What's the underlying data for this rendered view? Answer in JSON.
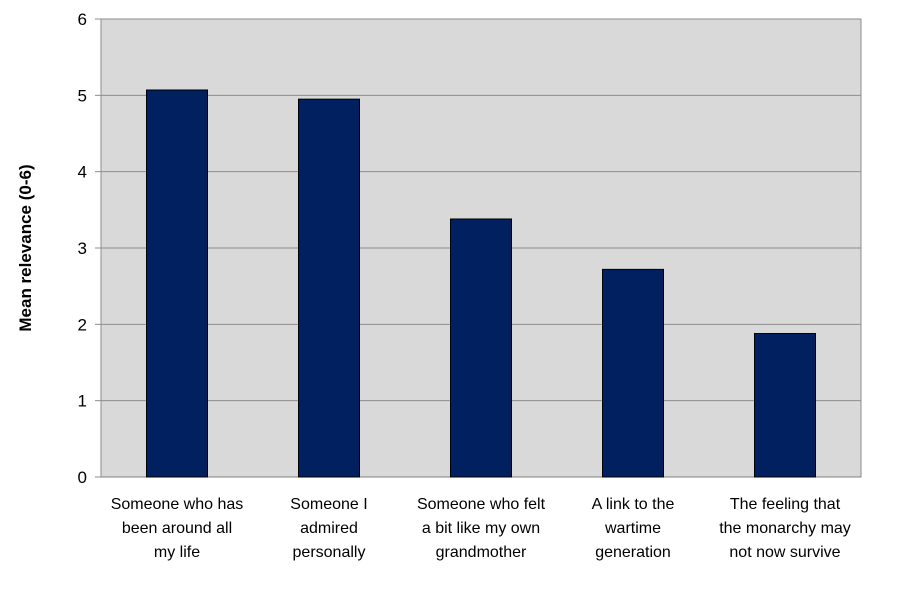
{
  "chart_data": {
    "type": "bar",
    "title": "",
    "xlabel": "",
    "ylabel": "Mean relevance (0-6)",
    "ylim": [
      0,
      6
    ],
    "yticks": [
      0,
      1,
      2,
      3,
      4,
      5,
      6
    ],
    "grid": true,
    "legend": "none",
    "categories": [
      [
        "Someone who has",
        "been around all",
        "my life"
      ],
      [
        "Someone I",
        "admired",
        "personally"
      ],
      [
        "Someone who felt",
        "a bit like my own",
        "grandmother"
      ],
      [
        "A link to the",
        "wartime",
        "generation"
      ],
      [
        "The feeling that",
        "the monarchy may",
        "not now survive"
      ]
    ],
    "values": [
      5.07,
      4.95,
      3.38,
      2.72,
      1.88
    ],
    "colors": {
      "bar": "#002060",
      "plot_background": "#d9d9d9",
      "gridline": "#8c8c8c"
    }
  }
}
